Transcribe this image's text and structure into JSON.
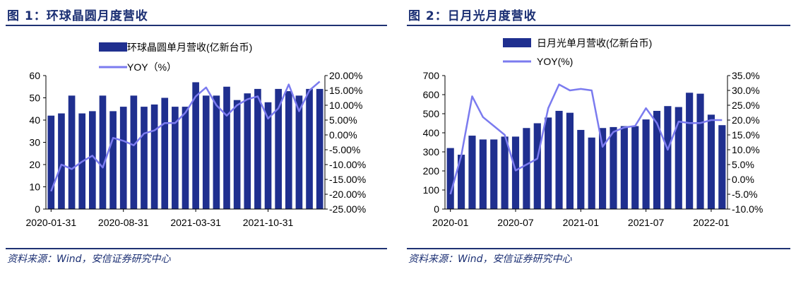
{
  "charts": [
    {
      "title": "图 1：环球晶圆月度营收",
      "source": "资料来源：Wind，安信证券研究中心",
      "legend": {
        "bar_label": "环球晶圆单月营收(亿新台币)",
        "line_label": "YOY（%）"
      },
      "colors": {
        "bar": "#1f2f8f",
        "line": "#7b7bef",
        "rule": "#1f3273"
      }
    },
    {
      "title": "图 2：日月光月度营收",
      "source": "资料来源：Wind，安信证券研究中心",
      "legend": {
        "bar_label": "日月光单月营收(亿新台币)",
        "line_label": "YOY(%)"
      },
      "colors": {
        "bar": "#1f2f8f",
        "line": "#7b7bef",
        "rule": "#1f3273"
      }
    }
  ],
  "chart_data": [
    {
      "type": "bar+line",
      "x": [
        "2020-01-31",
        "2020-02-29",
        "2020-03-31",
        "2020-04-30",
        "2020-05-31",
        "2020-06-30",
        "2020-07-31",
        "2020-08-31",
        "2020-09-30",
        "2020-10-31",
        "2020-11-30",
        "2020-12-31",
        "2021-01-31",
        "2021-02-28",
        "2021-03-31",
        "2021-04-30",
        "2021-05-31",
        "2021-06-30",
        "2021-07-31",
        "2021-08-31",
        "2021-09-30",
        "2021-10-31",
        "2021-11-30",
        "2021-12-31",
        "2022-01-31",
        "2022-02-28",
        "2022-03-31"
      ],
      "x_tick_labels": [
        "2020-01-31",
        "2020-08-31",
        "2021-03-31",
        "2021-10-31"
      ],
      "series": [
        {
          "name": "环球晶圆单月营收(亿新台币)",
          "kind": "bar",
          "axis": "left",
          "values": [
            42,
            43,
            51,
            43,
            44,
            51,
            44,
            46,
            51,
            46,
            47,
            50,
            46,
            46,
            57,
            51,
            51,
            55,
            49,
            52,
            54,
            48,
            54,
            53,
            51,
            54,
            54
          ]
        },
        {
          "name": "YOY（%）",
          "kind": "line",
          "axis": "right",
          "values": [
            -19,
            -10,
            -11.5,
            -9,
            -7,
            -11,
            -1,
            -2,
            -3.5,
            0.5,
            1.5,
            4,
            4,
            7.5,
            13,
            16,
            10,
            6.5,
            10,
            12,
            13,
            5.5,
            9,
            17,
            8,
            15,
            18
          ]
        }
      ],
      "y_left": {
        "min": 0,
        "max": 60,
        "ticks": [
          "0",
          "10",
          "20",
          "30",
          "40",
          "50",
          "60"
        ]
      },
      "y_right": {
        "min": -25,
        "max": 20,
        "ticks": [
          "-25.00%",
          "-20.00%",
          "-15.00%",
          "-10.00%",
          "-5.00%",
          "0.00%",
          "5.00%",
          "10.00%",
          "15.00%",
          "20.00%"
        ]
      },
      "legend_position": "top-center",
      "grid": false
    },
    {
      "type": "bar+line",
      "x": [
        "2020-01",
        "2020-02",
        "2020-03",
        "2020-04",
        "2020-05",
        "2020-06",
        "2020-07",
        "2020-08",
        "2020-09",
        "2020-10",
        "2020-11",
        "2020-12",
        "2021-01",
        "2021-02",
        "2021-03",
        "2021-04",
        "2021-05",
        "2021-06",
        "2021-07",
        "2021-08",
        "2021-09",
        "2021-10",
        "2021-11",
        "2021-12",
        "2022-01",
        "2022-02"
      ],
      "x_tick_labels": [
        "2020-01",
        "2020-07",
        "2021-01",
        "2021-07",
        "2022-01"
      ],
      "series": [
        {
          "name": "日月光单月营收(亿新台币)",
          "kind": "bar",
          "axis": "left",
          "values": [
            320,
            285,
            385,
            365,
            365,
            380,
            380,
            425,
            450,
            480,
            515,
            505,
            415,
            375,
            425,
            430,
            435,
            435,
            470,
            515,
            540,
            535,
            610,
            605,
            495,
            440
          ]
        },
        {
          "name": "YOY(%)",
          "kind": "line",
          "axis": "right",
          "values": [
            -5,
            8,
            28,
            21,
            18,
            15,
            3,
            5,
            7,
            24,
            32,
            30,
            30.5,
            30,
            11,
            16,
            17.5,
            18,
            24,
            19,
            10,
            19.5,
            19,
            19,
            20,
            20
          ]
        }
      ],
      "y_left": {
        "min": 0,
        "max": 700,
        "ticks": [
          "0",
          "100",
          "200",
          "300",
          "400",
          "500",
          "600",
          "700"
        ]
      },
      "y_right": {
        "min": -10,
        "max": 35,
        "ticks": [
          "-10.0%",
          "-5.0%",
          "0.0%",
          "5.0%",
          "10.0%",
          "15.0%",
          "20.0%",
          "25.0%",
          "30.0%",
          "35.0%"
        ]
      },
      "legend_position": "top-center",
      "grid": false
    }
  ]
}
